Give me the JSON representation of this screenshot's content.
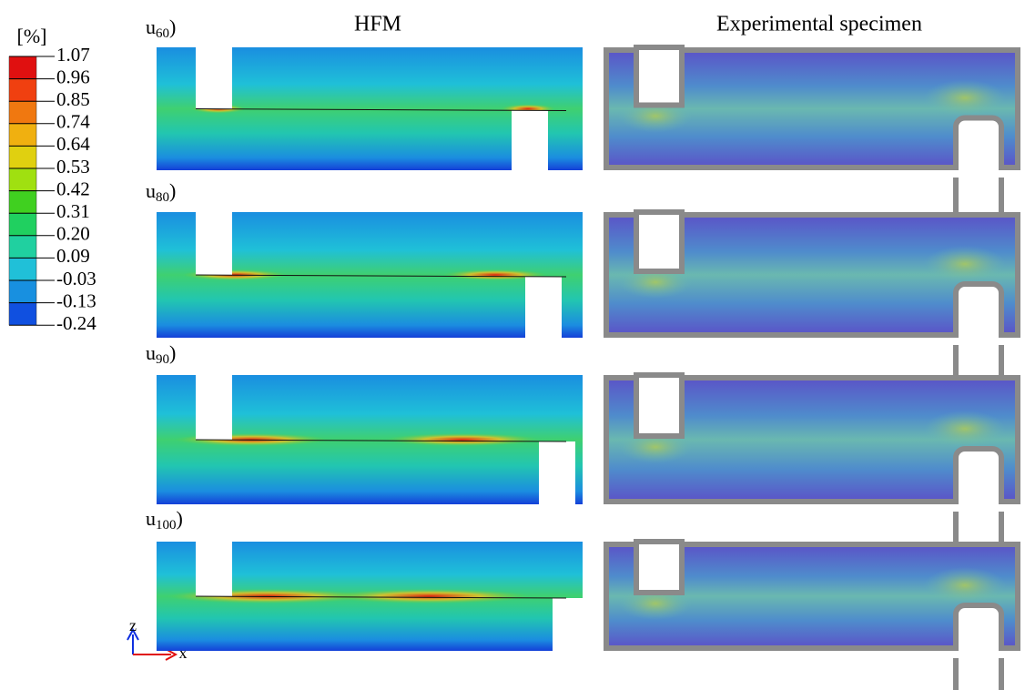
{
  "legend": {
    "unit": "[%]",
    "labels": [
      "1.07",
      "0.96",
      "0.85",
      "0.74",
      "0.64",
      "0.53",
      "0.42",
      "0.31",
      "0.20",
      "0.09",
      "-0.03",
      "-0.13",
      "-0.24"
    ]
  },
  "columns": [
    "HFM",
    "Experimental specimen"
  ],
  "rows": [
    {
      "base": "u",
      "sub": "60",
      "suffix": ")"
    },
    {
      "base": "u",
      "sub": "80",
      "suffix": ")"
    },
    {
      "base": "u",
      "sub": "90",
      "suffix": ")"
    },
    {
      "base": "u",
      "sub": "100",
      "suffix": ")"
    }
  ],
  "axes": {
    "vertical": "z",
    "horizontal": "x"
  }
}
